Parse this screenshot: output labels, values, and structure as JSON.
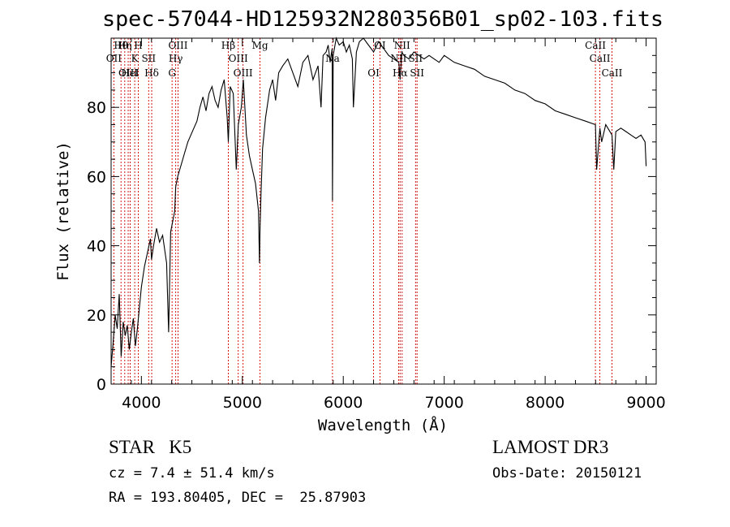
{
  "chart_data": {
    "type": "line",
    "title": "spec-57044-HD125932N280356B01_sp02-103.fits",
    "xlabel": "Wavelength (Å)",
    "ylabel": "Flux (relative)",
    "xlim": [
      3700,
      9100
    ],
    "ylim": [
      0,
      100
    ],
    "xticks": [
      4000,
      5000,
      6000,
      7000,
      8000,
      9000
    ],
    "yticks": [
      0,
      20,
      40,
      60,
      80
    ],
    "grid": false,
    "legend": "none",
    "series": [
      {
        "name": "flux",
        "x": [
          3700,
          3720,
          3740,
          3760,
          3780,
          3800,
          3820,
          3840,
          3860,
          3880,
          3900,
          3920,
          3940,
          3960,
          3980,
          4000,
          4030,
          4060,
          4090,
          4100,
          4120,
          4150,
          4180,
          4210,
          4250,
          4270,
          4290,
          4310,
          4330,
          4340,
          4360,
          4380,
          4400,
          4430,
          4460,
          4490,
          4520,
          4550,
          4580,
          4610,
          4640,
          4670,
          4700,
          4730,
          4760,
          4790,
          4820,
          4850,
          4861,
          4880,
          4910,
          4940,
          4960,
          4990,
          5010,
          5040,
          5070,
          5100,
          5130,
          5160,
          5170,
          5175,
          5185,
          5200,
          5230,
          5270,
          5300,
          5330,
          5360,
          5400,
          5450,
          5500,
          5550,
          5600,
          5650,
          5700,
          5750,
          5780,
          5800,
          5830,
          5850,
          5870,
          5890,
          5893,
          5900,
          5930,
          5960,
          6000,
          6030,
          6060,
          6090,
          6100,
          6130,
          6160,
          6200,
          6250,
          6300,
          6350,
          6400,
          6450,
          6500,
          6550,
          6563,
          6580,
          6600,
          6650,
          6700,
          6750,
          6800,
          6850,
          6900,
          6950,
          7000,
          7100,
          7200,
          7300,
          7400,
          7500,
          7600,
          7700,
          7800,
          7900,
          8000,
          8100,
          8200,
          8300,
          8400,
          8498,
          8510,
          8542,
          8560,
          8600,
          8662,
          8680,
          8700,
          8750,
          8800,
          8850,
          8900,
          8950,
          8990,
          9000
        ],
        "y": [
          5,
          12,
          20,
          16,
          26,
          8,
          18,
          14,
          17,
          10,
          15,
          19,
          11,
          16,
          22,
          28,
          34,
          38,
          42,
          36,
          40,
          45,
          41,
          43,
          35,
          15,
          44,
          47,
          50,
          57,
          60,
          62,
          64,
          67,
          70,
          72,
          74,
          76,
          80,
          83,
          79,
          84,
          86,
          82,
          80,
          85,
          88,
          77,
          70,
          86,
          84,
          62,
          75,
          80,
          88,
          72,
          66,
          62,
          58,
          50,
          35,
          45,
          55,
          68,
          77,
          85,
          88,
          82,
          90,
          92,
          94,
          90,
          86,
          93,
          95,
          88,
          92,
          80,
          95,
          96,
          98,
          93,
          97,
          53,
          95,
          100,
          98,
          99,
          96,
          98,
          94,
          80,
          96,
          99,
          100,
          98,
          96,
          99,
          97,
          95,
          94,
          93,
          88,
          96,
          95,
          94,
          96,
          95,
          94,
          95,
          94,
          93,
          95,
          93,
          92,
          91,
          89,
          88,
          87,
          85,
          84,
          82,
          81,
          79,
          78,
          77,
          76,
          75,
          62,
          74,
          70,
          75,
          72,
          62,
          73,
          74,
          73,
          72,
          71,
          72,
          70,
          63
        ]
      }
    ],
    "lines": [
      {
        "name": "Hθ",
        "wavelength": 3798
      },
      {
        "name": "OII",
        "wavelength": 3727
      },
      {
        "name": "OIII",
        "wavelength": 3869
      },
      {
        "name": "Hη",
        "wavelength": 3835
      },
      {
        "name": "K",
        "wavelength": 3934
      },
      {
        "name": "HeI",
        "wavelength": 3889
      },
      {
        "name": "H",
        "wavelength": 3969
      },
      {
        "name": "SII",
        "wavelength": 4072
      },
      {
        "name": "Hδ",
        "wavelength": 4102
      },
      {
        "name": "OIII",
        "wavelength": 4363
      },
      {
        "name": "Hγ",
        "wavelength": 4340
      },
      {
        "name": "G",
        "wavelength": 4304
      },
      {
        "name": "Hβ",
        "wavelength": 4861
      },
      {
        "name": "OIII",
        "wavelength": 4959
      },
      {
        "name": "OIII",
        "wavelength": 5007
      },
      {
        "name": "Mg",
        "wavelength": 5175
      },
      {
        "name": "Na",
        "wavelength": 5893
      },
      {
        "name": "OI",
        "wavelength": 6300
      },
      {
        "name": "OI",
        "wavelength": 6363
      },
      {
        "name": "NII",
        "wavelength": 6548
      },
      {
        "name": "Hα",
        "wavelength": 6563
      },
      {
        "name": "NII",
        "wavelength": 6583
      },
      {
        "name": "SII",
        "wavelength": 6716
      },
      {
        "name": "SII",
        "wavelength": 6731
      },
      {
        "name": "CaII",
        "wavelength": 8498
      },
      {
        "name": "CaII",
        "wavelength": 8542
      },
      {
        "name": "CaII",
        "wavelength": 8662
      }
    ]
  },
  "info": {
    "class_line": "STAR   K5",
    "cz_line": "cz = 7.4 ± 51.4 km/s",
    "radec_line": "RA = 193.80405, DEC =  25.87903",
    "survey": "LAMOST DR3",
    "obs_date": "Obs-Date: 20150121"
  }
}
